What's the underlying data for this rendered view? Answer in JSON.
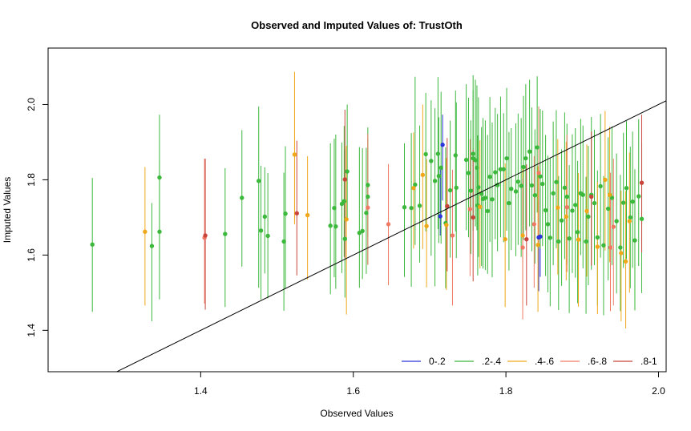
{
  "chart_data": {
    "type": "scatter",
    "title": "Observed and Imputed Values of: TrustOth",
    "xlabel": "Observed Values",
    "ylabel": "Imputed Values",
    "xlim": [
      1.2,
      2.01
    ],
    "ylim": [
      1.29,
      2.15
    ],
    "xticks": [
      "1.4",
      "1.6",
      "1.8",
      "2.0"
    ],
    "yticks": [
      "1.4",
      "1.6",
      "1.8",
      "2.0"
    ],
    "grid": false,
    "legend_position": "bottom-right",
    "reference_line": {
      "slope": 1,
      "intercept": 0
    },
    "series": [
      {
        "name": "0-.2",
        "color": "#2b35d9",
        "points": [
          [
            1.714,
            1.703,
            1.652,
            1.835
          ],
          [
            1.717,
            1.893,
            1.745,
            1.973
          ],
          [
            1.843,
            1.647,
            1.504,
            1.745
          ],
          [
            1.845,
            1.649,
            1.542,
            1.778
          ]
        ]
      },
      {
        "name": ".2-.4",
        "color": "#3cb83c",
        "points": [
          [
            1.258,
            1.628,
            1.449,
            1.805
          ],
          [
            1.336,
            1.624,
            1.424,
            1.738
          ],
          [
            1.346,
            1.806,
            1.588,
            1.973
          ],
          [
            1.346,
            1.662,
            1.482,
            1.852
          ],
          [
            1.432,
            1.656,
            1.462,
            1.831
          ],
          [
            1.454,
            1.752,
            1.569,
            1.932
          ],
          [
            1.476,
            1.797,
            1.513,
            1.995
          ],
          [
            1.479,
            1.665,
            1.482,
            1.837
          ],
          [
            1.484,
            1.702,
            1.551,
            1.833
          ],
          [
            1.488,
            1.651,
            1.485,
            1.818
          ],
          [
            1.509,
            1.636,
            1.452,
            1.819
          ],
          [
            1.511,
            1.71,
            1.51,
            1.889
          ],
          [
            1.57,
            1.678,
            1.496,
            1.897
          ],
          [
            1.575,
            1.725,
            1.541,
            1.909
          ],
          [
            1.577,
            1.676,
            1.51,
            1.92
          ],
          [
            1.585,
            1.736,
            1.552,
            1.899
          ],
          [
            1.588,
            1.743,
            1.595,
            1.943
          ],
          [
            1.589,
            1.643,
            1.487,
            1.881
          ],
          [
            1.592,
            1.822,
            1.693,
            2.0
          ],
          [
            1.608,
            1.659,
            1.513,
            1.887
          ],
          [
            1.612,
            1.664,
            1.536,
            1.884
          ],
          [
            1.617,
            1.712,
            1.55,
            1.885
          ],
          [
            1.619,
            1.755,
            1.575,
            1.939
          ],
          [
            1.619,
            1.786,
            1.649,
            1.907
          ],
          [
            1.667,
            1.727,
            1.542,
            1.897
          ],
          [
            1.676,
            1.725,
            1.516,
            1.924
          ],
          [
            1.681,
            1.787,
            1.627,
            2.074
          ],
          [
            1.687,
            1.731,
            1.58,
            1.944
          ],
          [
            1.695,
            1.868,
            1.663,
            2.031
          ],
          [
            1.702,
            1.85,
            1.598,
            2.011
          ],
          [
            1.707,
            1.797,
            1.517,
            1.99
          ],
          [
            1.711,
            1.869,
            1.669,
            2.073
          ],
          [
            1.712,
            1.81,
            1.632,
            1.966
          ],
          [
            1.715,
            1.832,
            1.63,
            2.034
          ],
          [
            1.721,
            1.685,
            1.512,
            1.886
          ],
          [
            1.727,
            1.772,
            1.593,
            1.957
          ],
          [
            1.734,
            1.865,
            1.663,
            2.037
          ],
          [
            1.735,
            1.779,
            1.592,
            2.006
          ],
          [
            1.748,
            1.853,
            1.666,
            2.054
          ],
          [
            1.751,
            1.818,
            1.647,
            2.018
          ],
          [
            1.754,
            1.771,
            1.603,
            1.958
          ],
          [
            1.757,
            1.857,
            1.664,
            2.038
          ],
          [
            1.757,
            1.869,
            1.704,
            2.078
          ],
          [
            1.76,
            1.852,
            1.676,
            2.066
          ],
          [
            1.762,
            1.832,
            1.666,
            2.051
          ],
          [
            1.763,
            1.732,
            1.546,
            1.918
          ],
          [
            1.764,
            1.78,
            1.595,
            2.019
          ],
          [
            1.768,
            1.763,
            1.571,
            1.94
          ],
          [
            1.77,
            1.749,
            1.564,
            1.964
          ],
          [
            1.773,
            1.752,
            1.56,
            1.958
          ],
          [
            1.776,
            1.717,
            1.55,
            1.919
          ],
          [
            1.779,
            1.808,
            1.635,
            2.02
          ],
          [
            1.782,
            1.748,
            1.541,
            1.952
          ],
          [
            1.786,
            1.82,
            1.642,
            1.991
          ],
          [
            1.789,
            1.786,
            1.61,
            1.975
          ],
          [
            1.793,
            1.828,
            1.647,
            2.021
          ],
          [
            1.797,
            1.828,
            1.634,
            1.977
          ],
          [
            1.801,
            1.857,
            1.665,
            2.044
          ],
          [
            1.804,
            1.738,
            1.559,
            1.927
          ],
          [
            1.807,
            1.776,
            1.613,
            1.937
          ],
          [
            1.813,
            1.769,
            1.597,
            1.95
          ],
          [
            1.816,
            1.795,
            1.627,
            1.976
          ],
          [
            1.82,
            1.784,
            1.595,
            1.964
          ],
          [
            1.823,
            1.834,
            1.64,
            2.023
          ],
          [
            1.826,
            1.857,
            1.666,
            2.054
          ],
          [
            1.831,
            1.875,
            1.676,
            2.066
          ],
          [
            1.834,
            1.785,
            1.61,
            1.992
          ],
          [
            1.838,
            1.759,
            1.577,
            1.934
          ],
          [
            1.841,
            1.886,
            1.713,
            2.075
          ],
          [
            1.845,
            1.809,
            1.617,
            1.988
          ],
          [
            1.848,
            1.789,
            1.624,
            1.984
          ],
          [
            1.852,
            1.719,
            1.544,
            1.919
          ],
          [
            1.855,
            1.682,
            1.501,
            1.864
          ],
          [
            1.858,
            1.646,
            1.464,
            1.858
          ],
          [
            1.862,
            1.764,
            1.573,
            1.955
          ],
          [
            1.866,
            1.794,
            1.618,
            1.985
          ],
          [
            1.869,
            1.636,
            1.454,
            1.81
          ],
          [
            1.873,
            1.692,
            1.518,
            1.881
          ],
          [
            1.877,
            1.779,
            1.589,
            1.979
          ],
          [
            1.88,
            1.755,
            1.575,
            1.949
          ],
          [
            1.883,
            1.644,
            1.446,
            1.839
          ],
          [
            1.887,
            1.718,
            1.552,
            1.921
          ],
          [
            1.891,
            1.733,
            1.54,
            1.937
          ],
          [
            1.894,
            1.661,
            1.472,
            1.85
          ],
          [
            1.898,
            1.764,
            1.6,
            1.962
          ],
          [
            1.901,
            1.76,
            1.565,
            1.944
          ],
          [
            1.905,
            1.636,
            1.444,
            1.808
          ],
          [
            1.908,
            1.702,
            1.52,
            1.89
          ],
          [
            1.912,
            1.76,
            1.561,
            1.967
          ],
          [
            1.916,
            1.738,
            1.573,
            1.933
          ],
          [
            1.92,
            1.647,
            1.466,
            1.825
          ],
          [
            1.924,
            1.783,
            1.593,
            1.975
          ],
          [
            1.928,
            1.626,
            1.44,
            1.81
          ],
          [
            1.934,
            1.723,
            1.533,
            1.913
          ],
          [
            1.939,
            1.752,
            1.573,
            1.942
          ],
          [
            1.945,
            1.69,
            1.498,
            1.87
          ],
          [
            1.95,
            1.62,
            1.451,
            1.813
          ],
          [
            1.954,
            1.739,
            1.566,
            1.925
          ],
          [
            1.958,
            1.778,
            1.589,
            1.956
          ],
          [
            1.963,
            1.7,
            1.512,
            1.888
          ],
          [
            1.966,
            1.742,
            1.566,
            1.928
          ],
          [
            1.969,
            1.639,
            1.453,
            1.828
          ],
          [
            1.974,
            1.756,
            1.571,
            1.961
          ],
          [
            1.978,
            1.696,
            1.499,
            1.898
          ]
        ]
      },
      {
        "name": ".4-.6",
        "color": "#f0a81a",
        "points": [
          [
            1.327,
            1.662,
            1.466,
            1.834
          ],
          [
            1.523,
            1.867,
            1.682,
            2.087
          ],
          [
            1.54,
            1.706,
            1.535,
            1.863
          ],
          [
            1.591,
            1.695,
            1.442,
            1.89
          ],
          [
            1.679,
            1.778,
            1.617,
            1.926
          ],
          [
            1.691,
            1.813,
            1.616,
            2.0
          ],
          [
            1.696,
            1.677,
            1.514,
            1.854
          ],
          [
            1.722,
            1.68,
            1.507,
            1.858
          ],
          [
            1.766,
            1.728,
            1.565,
            1.905
          ],
          [
            1.799,
            1.642,
            1.462,
            1.844
          ],
          [
            1.822,
            1.652,
            1.469,
            1.839
          ],
          [
            1.842,
            1.627,
            1.449,
            1.836
          ],
          [
            1.868,
            1.726,
            1.548,
            1.908
          ],
          [
            1.879,
            1.702,
            1.533,
            1.901
          ],
          [
            1.895,
            1.641,
            1.463,
            1.818
          ],
          [
            1.906,
            1.717,
            1.543,
            1.894
          ],
          [
            1.92,
            1.622,
            1.443,
            1.794
          ],
          [
            1.936,
            1.76,
            1.581,
            1.941
          ],
          [
            1.951,
            1.605,
            1.424,
            1.771
          ],
          [
            1.957,
            1.583,
            1.405,
            1.77
          ],
          [
            1.962,
            1.69,
            1.5,
            1.872
          ],
          [
            1.93,
            1.8,
            1.612,
            1.983
          ]
        ]
      },
      {
        "name": ".6-.8",
        "color": "#f07a66",
        "points": [
          [
            1.405,
            1.646,
            1.471,
            1.856
          ],
          [
            1.619,
            1.726,
            1.574,
            1.922
          ],
          [
            1.646,
            1.682,
            1.52,
            1.842
          ],
          [
            1.73,
            1.652,
            1.466,
            1.827
          ],
          [
            1.753,
            1.722,
            1.544,
            1.908
          ],
          [
            1.822,
            1.62,
            1.429,
            1.804
          ],
          [
            1.837,
            1.682,
            1.513,
            1.863
          ],
          [
            1.843,
            1.818,
            1.622,
            1.995
          ],
          [
            1.88,
            1.727,
            1.555,
            1.92
          ],
          [
            1.937,
            1.62,
            1.451,
            1.819
          ],
          [
            1.941,
            1.675,
            1.466,
            1.856
          ]
        ]
      },
      {
        "name": ".8-1",
        "color": "#c9443a",
        "points": [
          [
            1.406,
            1.652,
            1.455,
            1.856
          ],
          [
            1.526,
            1.711,
            1.546,
            1.904
          ],
          [
            1.589,
            1.801,
            1.592,
            1.986
          ],
          [
            1.723,
            1.73,
            1.557,
            1.911
          ],
          [
            1.757,
            1.7,
            1.53,
            1.88
          ],
          [
            1.827,
            1.642,
            1.466,
            1.841
          ],
          [
            1.912,
            1.755,
            1.572,
            1.928
          ],
          [
            1.978,
            1.792,
            1.607,
            1.973
          ]
        ]
      }
    ]
  }
}
